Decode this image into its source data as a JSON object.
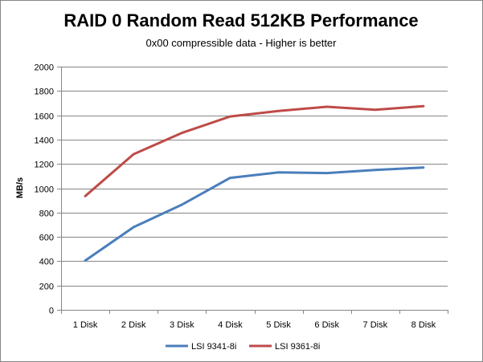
{
  "chart_data": {
    "type": "line",
    "title": "RAID 0 Random Read 512KB Performance",
    "subtitle": "0x00 compressible data - Higher is better",
    "xlabel": "",
    "ylabel": "MB/s",
    "categories": [
      "1 Disk",
      "2 Disk",
      "3 Disk",
      "4 Disk",
      "5 Disk",
      "6 Disk",
      "7 Disk",
      "8 Disk"
    ],
    "ylim": [
      0,
      2000
    ],
    "yticks": [
      0,
      200,
      400,
      600,
      800,
      1000,
      1200,
      1400,
      1600,
      1800,
      2000
    ],
    "grid": "horizontal",
    "legend": "bottom",
    "series": [
      {
        "name": "LSI 9341-8i",
        "color": "#4a7ebb",
        "values": [
          405,
          680,
          865,
          1085,
          1130,
          1125,
          1150,
          1170
        ]
      },
      {
        "name": "LSI 9361-8i",
        "color": "#be4b48",
        "values": [
          935,
          1280,
          1455,
          1590,
          1635,
          1670,
          1645,
          1675
        ]
      }
    ]
  }
}
